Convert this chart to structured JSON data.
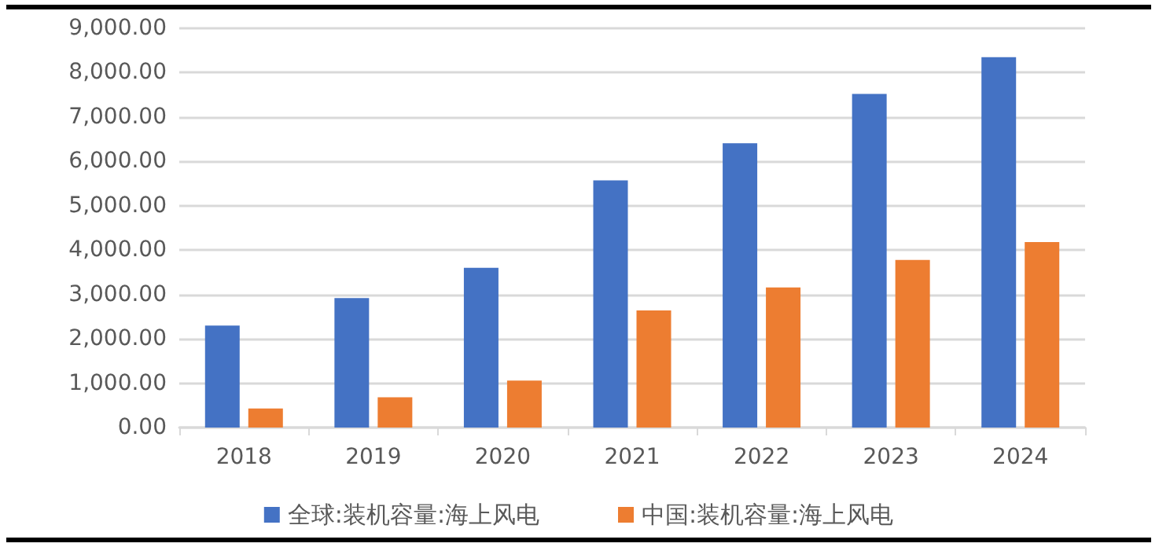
{
  "chart_data": {
    "type": "bar",
    "categories": [
      "2018",
      "2019",
      "2020",
      "2021",
      "2022",
      "2023",
      "2024"
    ],
    "series": [
      {
        "name": "全球:装机容量:海上风电",
        "color": "#4472c4",
        "values": [
          2300,
          2920,
          3600,
          5570,
          6410,
          7520,
          8350
        ]
      },
      {
        "name": "中国:装机容量:海上风电",
        "color": "#ed7d31",
        "values": [
          430,
          680,
          1060,
          2640,
          3160,
          3780,
          4180
        ]
      }
    ],
    "ylim": [
      0,
      9000
    ],
    "yticks": [
      {
        "value": 0,
        "label": "0.00"
      },
      {
        "value": 1000,
        "label": "1,000.00"
      },
      {
        "value": 2000,
        "label": "2,000.00"
      },
      {
        "value": 3000,
        "label": "3,000.00"
      },
      {
        "value": 4000,
        "label": "4,000.00"
      },
      {
        "value": 5000,
        "label": "5,000.00"
      },
      {
        "value": 6000,
        "label": "6,000.00"
      },
      {
        "value": 7000,
        "label": "7,000.00"
      },
      {
        "value": 8000,
        "label": "8,000.00"
      },
      {
        "value": 9000,
        "label": "9,000.00"
      }
    ],
    "grid": "y",
    "legend": "bottom"
  }
}
